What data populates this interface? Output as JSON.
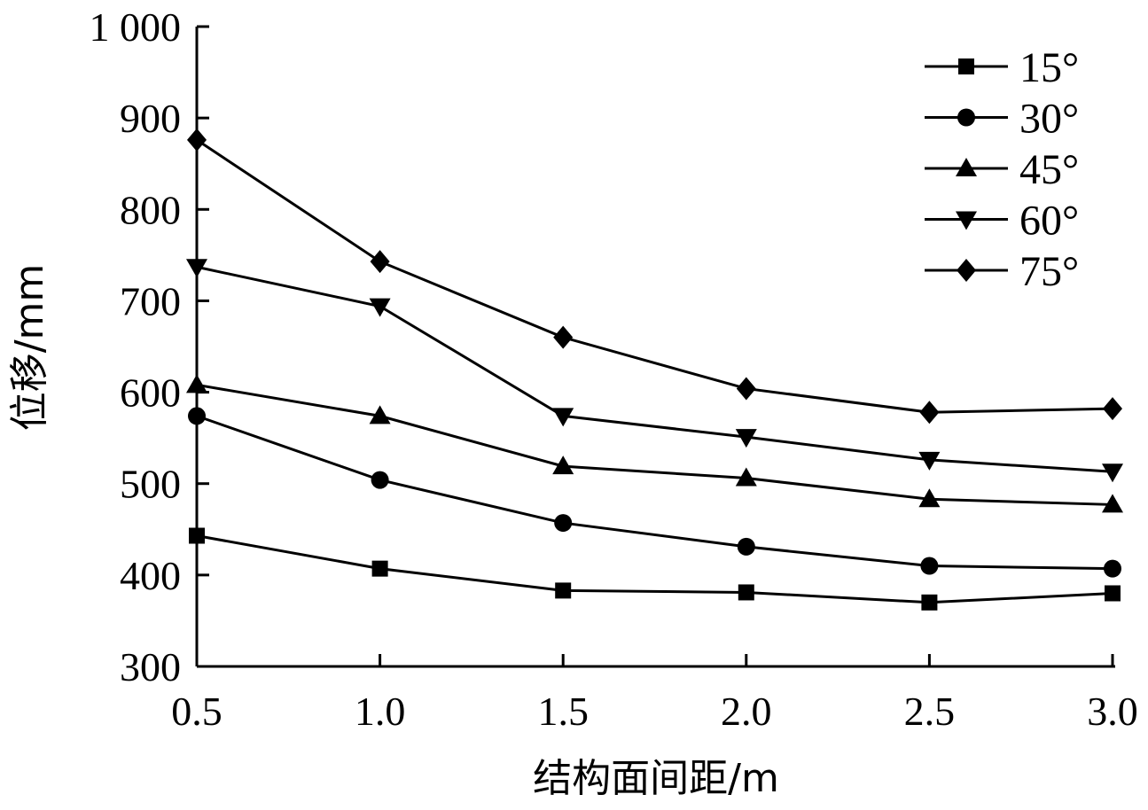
{
  "chart_data": {
    "type": "line",
    "xlabel": "结构面间距/m",
    "ylabel": "位移/mm",
    "x": [
      0.5,
      1.0,
      1.5,
      2.0,
      2.5,
      3.0
    ],
    "x_ticks": [
      "0.5",
      "1.0",
      "1.5",
      "2.0",
      "2.5",
      "3.0"
    ],
    "y_ticks": [
      "300",
      "400",
      "500",
      "600",
      "700",
      "800",
      "900",
      "1 000"
    ],
    "y_tick_values": [
      300,
      400,
      500,
      600,
      700,
      800,
      900,
      1000
    ],
    "xlim": [
      0.5,
      3.0
    ],
    "ylim": [
      300,
      1000
    ],
    "grid": false,
    "legend_position": "top-right",
    "series": [
      {
        "name": "15°",
        "marker": "square",
        "values": [
          443,
          407,
          383,
          381,
          370,
          380
        ]
      },
      {
        "name": "30°",
        "marker": "circle",
        "values": [
          574,
          504,
          457,
          431,
          410,
          407
        ]
      },
      {
        "name": "45°",
        "marker": "triangle-up",
        "values": [
          608,
          574,
          519,
          506,
          483,
          477
        ]
      },
      {
        "name": "60°",
        "marker": "triangle-down",
        "values": [
          737,
          694,
          574,
          551,
          526,
          513
        ]
      },
      {
        "name": "75°",
        "marker": "diamond",
        "values": [
          876,
          743,
          660,
          604,
          578,
          582
        ]
      }
    ]
  }
}
